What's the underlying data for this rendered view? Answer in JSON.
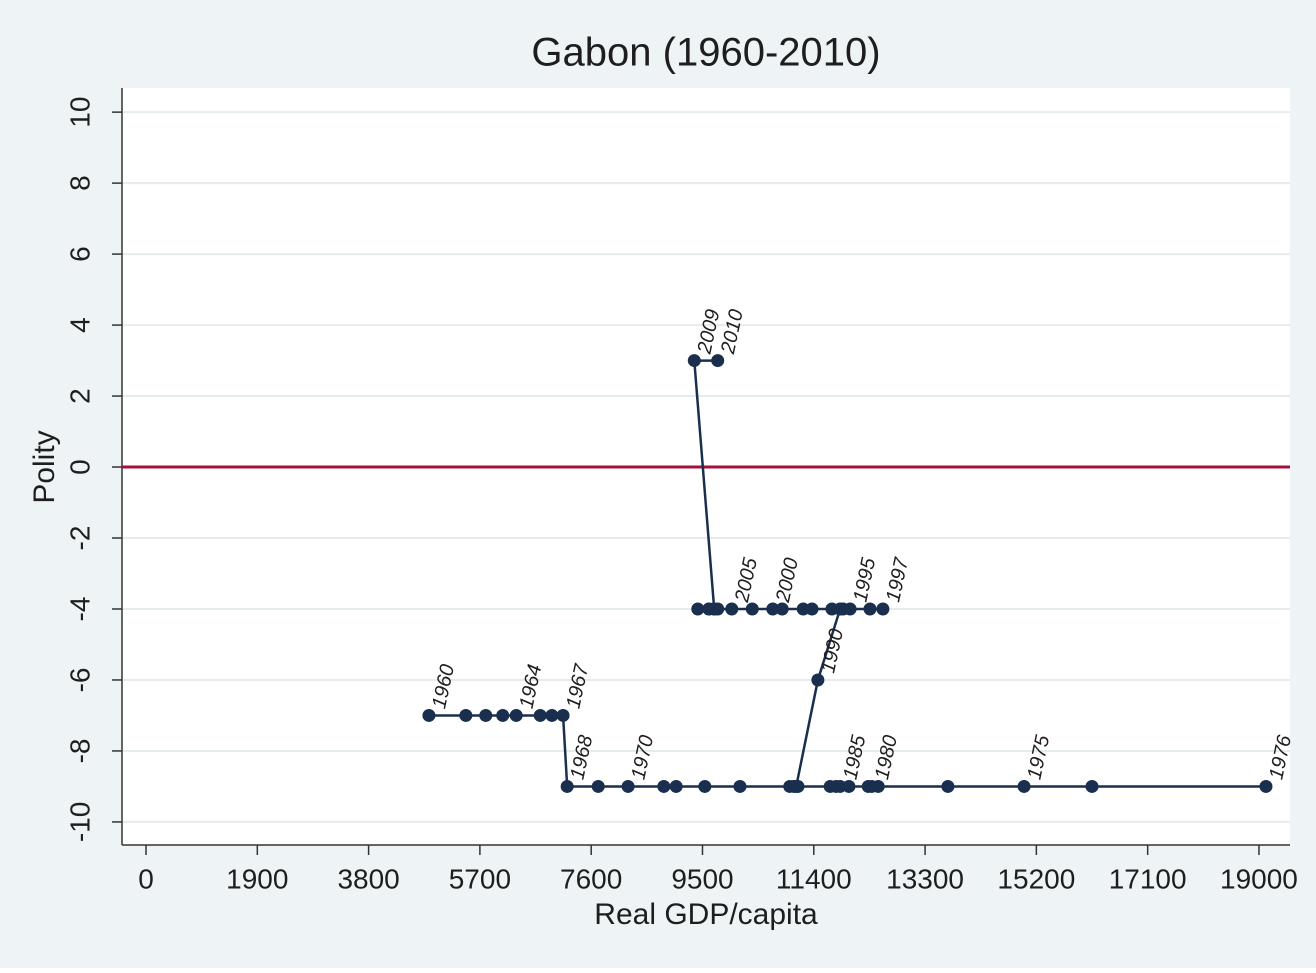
{
  "chart_data": {
    "type": "line",
    "title": "Gabon (1960-2010)",
    "x_label": "Real GDP/capita",
    "y_label": "Polity",
    "x": [
      4830,
      5460,
      5800,
      6090,
      6320,
      6730,
      6930,
      7120,
      7190,
      7720,
      8230,
      8840,
      9050,
      9540,
      10140,
      14990,
      19120,
      16150,
      13690,
      12500,
      12390,
      12330,
      12000,
      11780,
      11680,
      11850,
      11130,
      10990,
      11060,
      11100,
      11470,
      11850,
      11710,
      11900,
      11370,
      12020,
      12360,
      12580,
      11220,
      10860,
      10700,
      10350,
      9610,
      9420,
      9760,
      10000,
      9700,
      9610,
      9700,
      9360,
      9760
    ],
    "values": [
      -7,
      -7,
      -7,
      -7,
      -7,
      -7,
      -7,
      -7,
      -9,
      -9,
      -9,
      -9,
      -9,
      -9,
      -9,
      -9,
      -9,
      -9,
      -9,
      -9,
      -9,
      -9,
      -9,
      -9,
      -9,
      -9,
      -9,
      -9,
      -9,
      -9,
      -6,
      -4,
      -4,
      -4,
      -4,
      -4,
      -4,
      -4,
      -4,
      -4,
      -4,
      -4,
      -4,
      -4,
      -4,
      -4,
      -4,
      -4,
      -4,
      3,
      3
    ],
    "point_labels": [
      "1960",
      null,
      null,
      null,
      "1964",
      null,
      null,
      "1967",
      "1968",
      null,
      "1970",
      null,
      null,
      null,
      null,
      "1975",
      "1976",
      null,
      null,
      null,
      "1980",
      null,
      null,
      null,
      null,
      "1985",
      null,
      null,
      null,
      null,
      "1990",
      null,
      null,
      null,
      null,
      "1995",
      null,
      "1997",
      null,
      null,
      "2000",
      null,
      null,
      null,
      null,
      "2005",
      null,
      null,
      null,
      "2009",
      "2010"
    ],
    "color": "#1a2f4e",
    "reference_line": {
      "value": 0,
      "color": "#a3123a"
    },
    "xlim": [
      -410,
      19530
    ],
    "ylim": [
      -10.65,
      10.68
    ],
    "xticks": [
      0,
      1900,
      3800,
      5700,
      7600,
      9500,
      11400,
      13300,
      15200,
      17100,
      19000
    ],
    "yticks": [
      -10,
      -8,
      -6,
      -4,
      -2,
      0,
      2,
      4,
      6,
      8,
      10
    ],
    "grid": true
  }
}
